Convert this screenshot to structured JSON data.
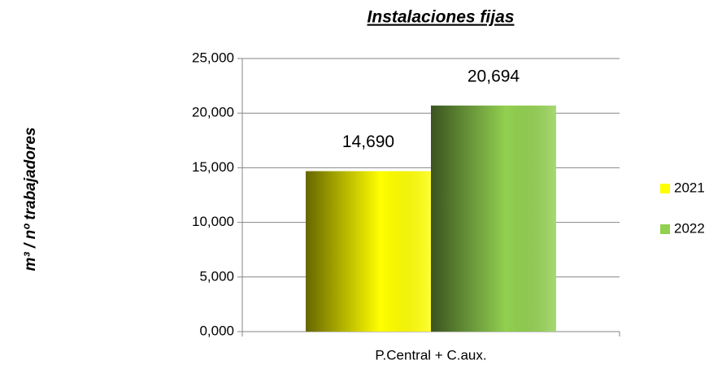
{
  "chart_data": {
    "type": "bar",
    "title": "Instalaciones fijas",
    "y_label": "m³ / nº trabajadores",
    "categories": [
      "P.Central + C.aux."
    ],
    "series": [
      {
        "name": "2021",
        "color": "#ffff00",
        "values": [
          14.69
        ],
        "value_labels": [
          "14,690"
        ]
      },
      {
        "name": "2022",
        "color": "#92d050",
        "values": [
          20.694
        ],
        "value_labels": [
          "20,694"
        ]
      }
    ],
    "ylim": [
      0,
      25
    ],
    "yticks": [
      {
        "value": 0,
        "label": "0,000"
      },
      {
        "value": 5,
        "label": "5,000"
      },
      {
        "value": 10,
        "label": "10,000"
      },
      {
        "value": 15,
        "label": "15,000"
      },
      {
        "value": 20,
        "label": "20,000"
      },
      {
        "value": 25,
        "label": "25,000"
      }
    ],
    "grid": true,
    "legend": "right"
  }
}
